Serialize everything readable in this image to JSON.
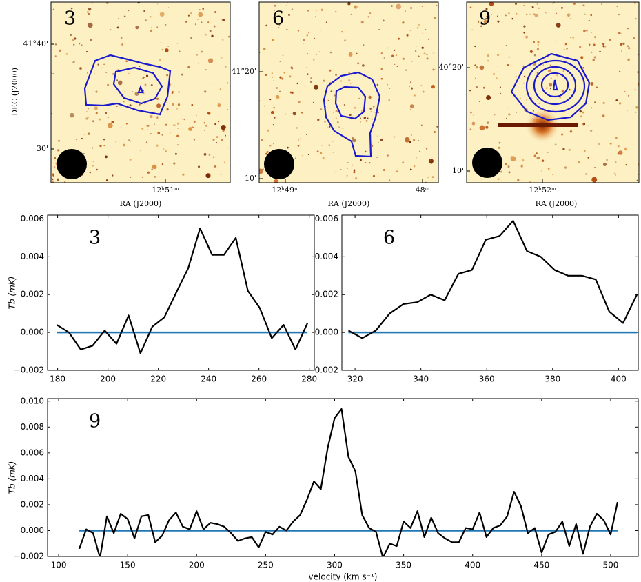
{
  "images": [
    {
      "label": "3",
      "ylabel": "DEC (J2000)",
      "xlabel": "RA (J2000)",
      "xticks": [
        "12ʰ51ᵐ"
      ],
      "yticks": [
        "41°40'",
        "30'"
      ]
    },
    {
      "label": "6",
      "xlabel": "RA (J2000)",
      "xticks": [
        "12ʰ49ᵐ",
        "48ᵐ"
      ],
      "yticks": [
        "41°20'",
        "10'"
      ]
    },
    {
      "label": "9",
      "xlabel": "RA (J2000)",
      "xticks": [
        "12ʰ52ᵐ"
      ],
      "yticks": [
        "40°20'",
        "10'"
      ]
    }
  ],
  "chart_data": [
    {
      "type": "line",
      "label": "3",
      "ylabel": "Tb (mK)",
      "x": [
        179.7,
        184.5,
        189.2,
        193.9,
        198.7,
        203.4,
        208.2,
        212.9,
        217.6,
        222.4,
        227.1,
        231.9,
        236.6,
        241.4,
        246.1,
        250.8,
        255.6,
        260.3,
        265.1,
        269.8,
        274.5,
        279.3
      ],
      "series": [
        {
          "color": "#000000",
          "values": [
            0.0004,
            0.0,
            -0.0009,
            -0.0007,
            0.0001,
            -0.0006,
            0.0009,
            -0.0011,
            0.0003,
            0.0008,
            0.0021,
            0.0034,
            0.0055,
            0.0041,
            0.0041,
            0.005,
            0.0022,
            0.0013,
            -0.0003,
            0.0004,
            -0.0009,
            0.0005
          ]
        }
      ],
      "hline": {
        "value": 0,
        "color": "#1f77b4"
      },
      "xlim": [
        176,
        282
      ],
      "xticks": [
        180,
        200,
        220,
        240,
        260,
        280
      ],
      "ylim": [
        -0.002,
        0.0062
      ],
      "yticks": [
        {
          "value": -0.002,
          "label": "−0.002"
        },
        {
          "value": 0,
          "label": "0.000"
        },
        0.002,
        0.004,
        0.006
      ]
    },
    {
      "type": "line",
      "label": "6",
      "x": [
        318.0,
        322.2,
        326.3,
        330.5,
        334.7,
        338.9,
        343.0,
        347.2,
        351.4,
        355.5,
        359.7,
        363.9,
        368.0,
        372.2,
        376.4,
        380.6,
        384.7,
        388.9,
        393.1,
        397.2,
        401.4,
        405.6
      ],
      "series": [
        {
          "color": "#000000",
          "values": [
            0.0001,
            -0.0003,
            0.0001,
            0.001,
            0.0015,
            0.0016,
            0.002,
            0.0017,
            0.0031,
            0.0033,
            0.0049,
            0.0051,
            0.0059,
            0.0043,
            0.004,
            0.0033,
            0.003,
            0.003,
            0.0028,
            0.0011,
            0.0005,
            0.002
          ]
        }
      ],
      "hline": {
        "value": 0,
        "color": "#1f77b4"
      },
      "xlim": [
        316,
        406
      ],
      "xticks": [
        320,
        340,
        360,
        380,
        400
      ],
      "ylim": [
        -0.002,
        0.0062
      ],
      "yticks": [
        {
          "value": -0.002,
          "label": "−0.002"
        },
        {
          "value": 0,
          "label": "0.000"
        },
        0.002,
        0.004,
        0.006
      ]
    },
    {
      "type": "line",
      "label": "9",
      "ylabel": "Tb (mK)",
      "xlabel": "velocity (km s⁻¹)",
      "x": [
        115,
        120,
        125,
        130,
        135,
        140,
        145,
        150,
        155,
        160,
        165,
        170,
        175,
        180,
        185,
        190,
        195,
        200,
        205,
        210,
        215,
        220,
        225,
        230,
        235,
        240,
        245,
        250,
        255,
        260,
        265,
        270,
        275,
        280,
        285,
        290,
        295,
        300,
        305,
        310,
        315,
        320,
        325,
        330,
        335,
        340,
        345,
        350,
        355,
        360,
        365,
        370,
        375,
        380,
        385,
        390,
        395,
        400,
        405,
        410,
        415,
        420,
        425,
        430,
        435,
        440,
        445,
        450,
        455,
        460,
        465,
        470,
        475,
        480,
        485,
        490,
        495,
        500,
        505
      ],
      "series": [
        {
          "color": "#000000",
          "values": [
            -0.0014,
            0.0001,
            -0.0002,
            -0.0021,
            0.0011,
            -0.0002,
            0.0013,
            0.0009,
            -0.0006,
            0.0011,
            0.0012,
            -0.0009,
            -0.0004,
            0.0008,
            0.0014,
            0.0003,
            0.0001,
            0.0015,
            0.0001,
            0.0006,
            0.0005,
            0.0003,
            -0.0002,
            -0.0008,
            -0.0006,
            -0.0005,
            -0.0013,
            -0.0001,
            -0.0003,
            0.0003,
            0.0,
            0.0007,
            0.0012,
            0.0024,
            0.0038,
            0.0032,
            0.0064,
            0.0087,
            0.0094,
            0.0057,
            0.0046,
            0.0012,
            0.0002,
            -0.0001,
            -0.0021,
            -0.001,
            -0.0012,
            0.0007,
            0.0002,
            0.0015,
            -0.0005,
            0.001,
            -0.0002,
            -0.0006,
            -0.0009,
            -0.0009,
            0.0002,
            0.0001,
            0.0014,
            -0.0005,
            0.0002,
            0.0004,
            0.0011,
            0.003,
            0.0019,
            -0.0002,
            0.0002,
            -0.0017,
            -0.0003,
            -0.0001,
            0.0007,
            -0.0012,
            0.0005,
            -0.0018,
            0.0003,
            0.0013,
            0.0008,
            -0.0003,
            0.0022
          ]
        }
      ],
      "hline": {
        "value": 0,
        "color": "#1f77b4"
      },
      "xlim": [
        92,
        520
      ],
      "xticks": [
        100,
        150,
        200,
        250,
        300,
        350,
        400,
        450,
        500
      ],
      "ylim": [
        -0.002,
        0.0102
      ],
      "yticks": [
        {
          "value": -0.002,
          "label": "−0.002"
        },
        {
          "value": 0,
          "label": "0.000"
        },
        0.002,
        0.004,
        0.006,
        0.008,
        {
          "value": 0.01,
          "label": "0.010"
        }
      ]
    }
  ]
}
